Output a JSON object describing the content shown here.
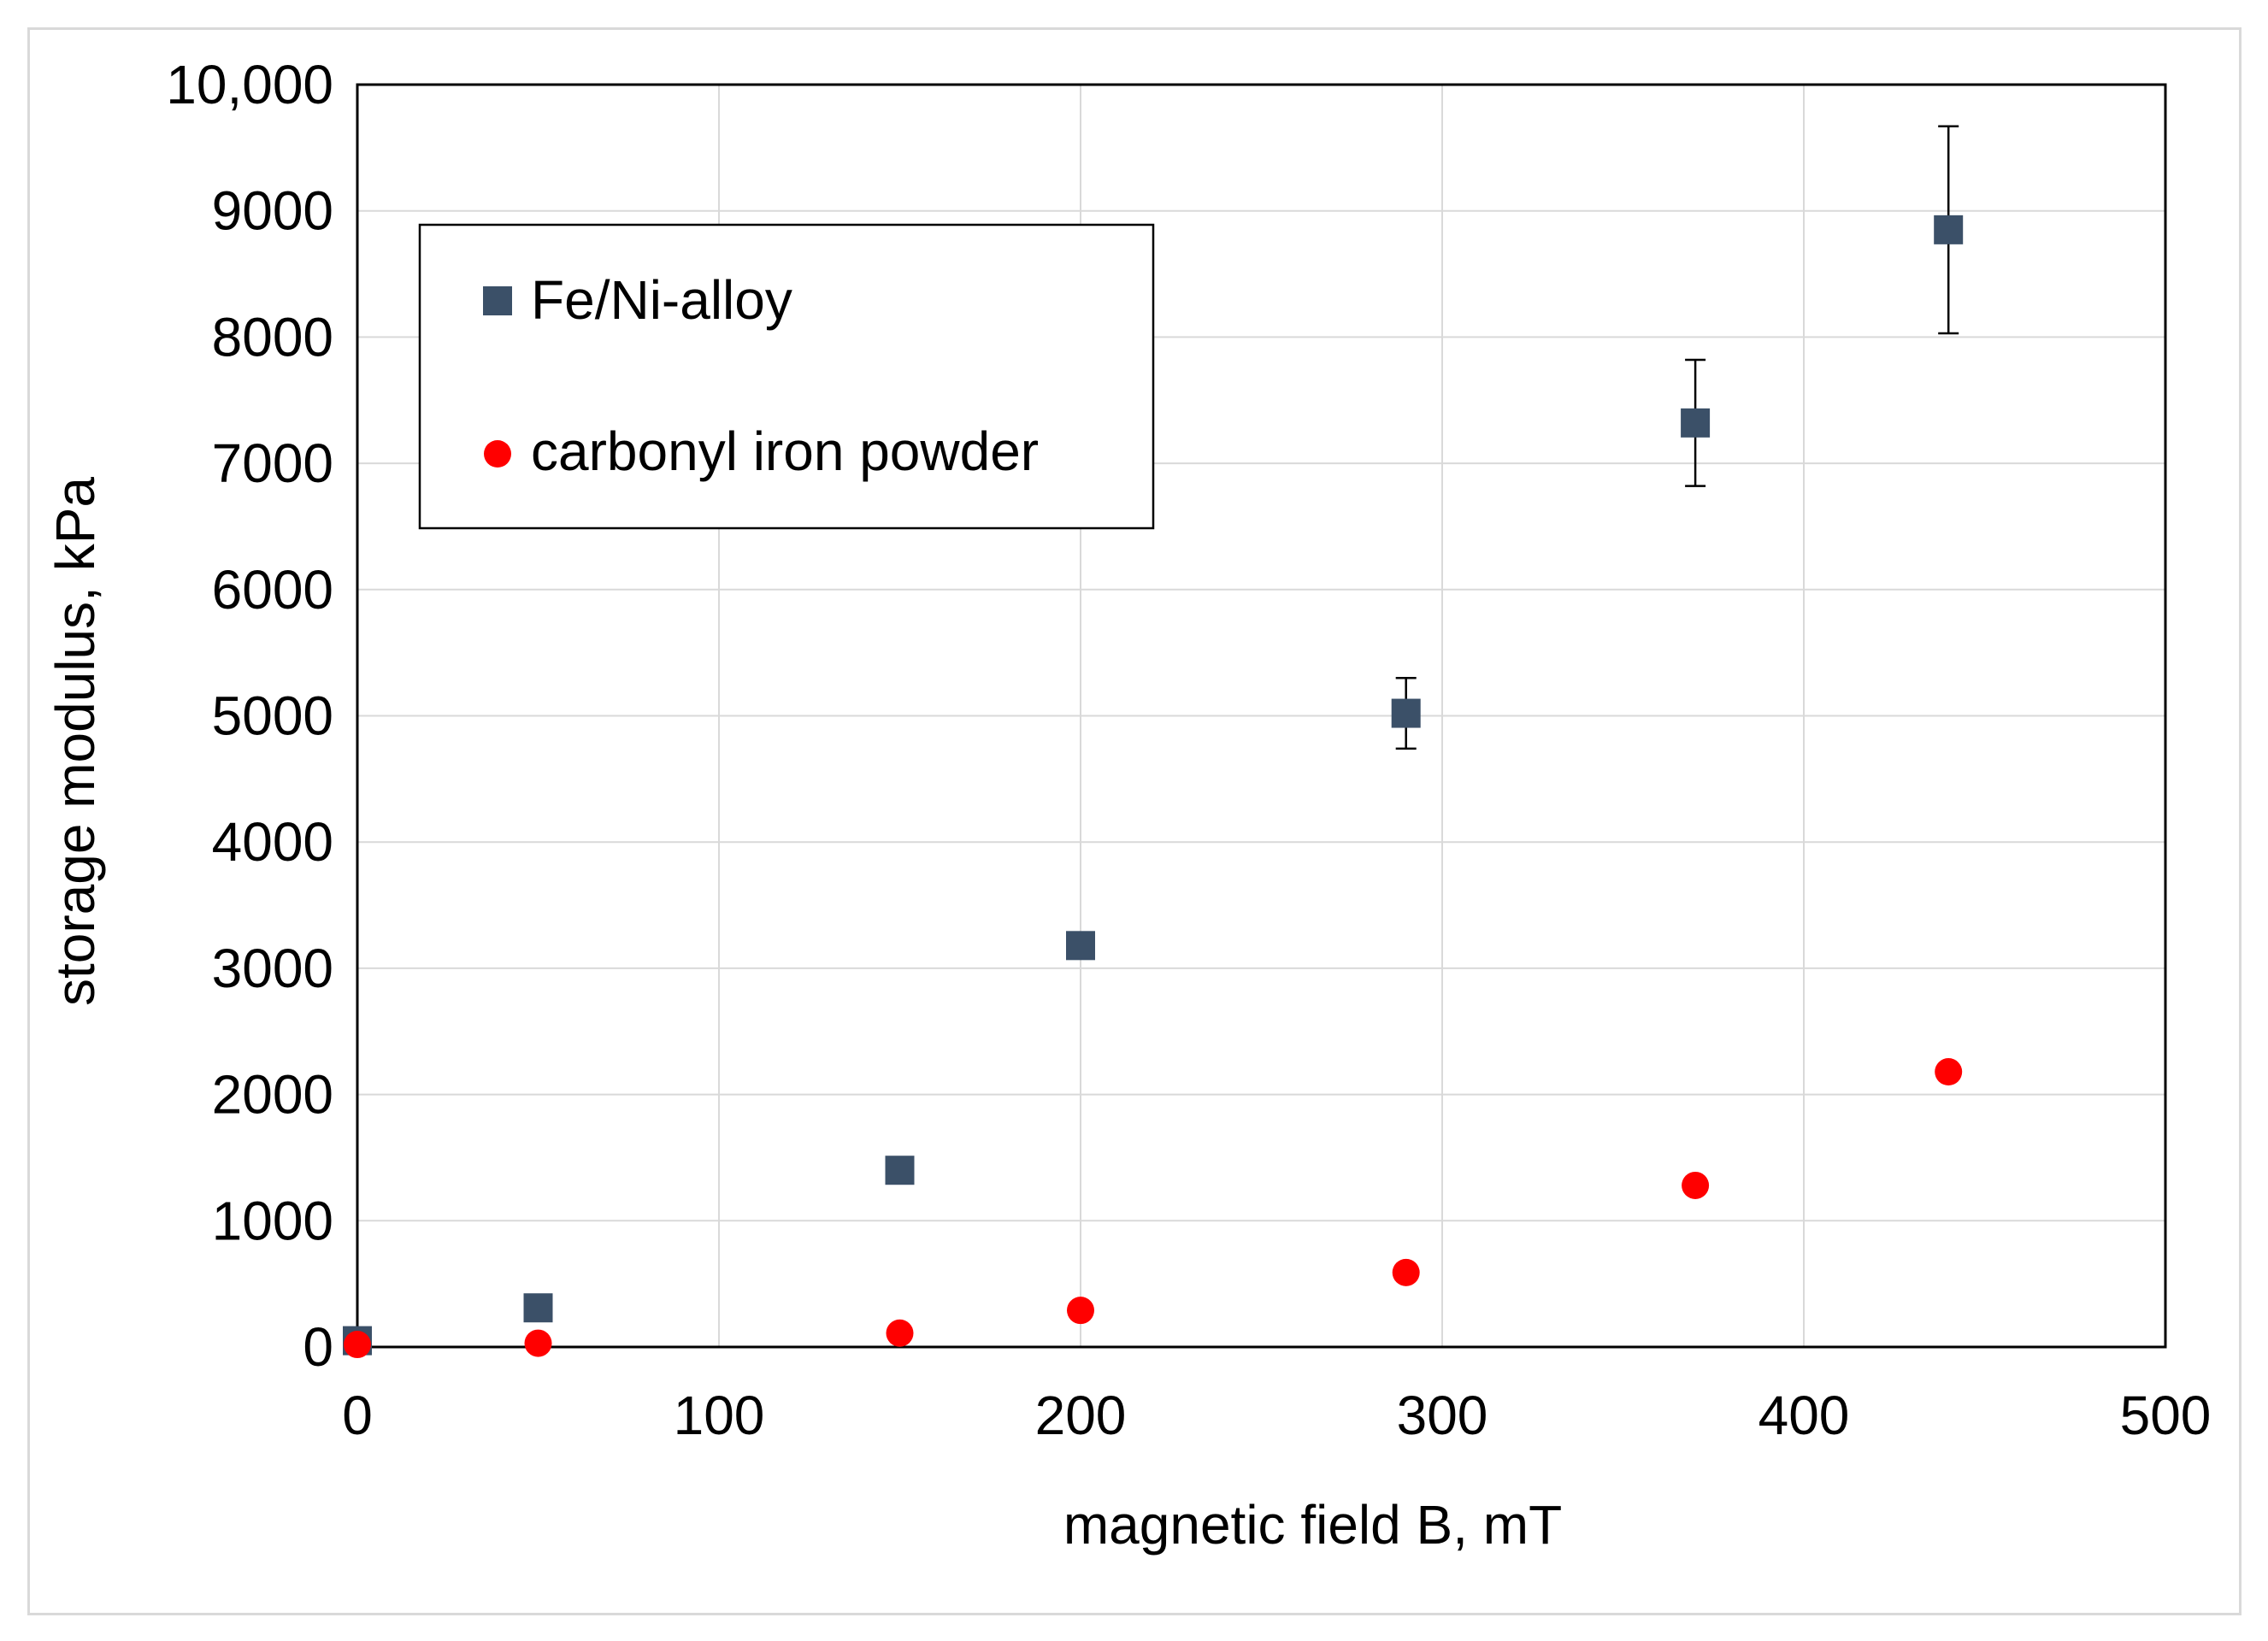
{
  "chart_data": {
    "type": "scatter",
    "title": "",
    "xlabel": "magnetic field B, mT",
    "ylabel": "storage modulus, kPa",
    "xlim": [
      0,
      500
    ],
    "ylim": [
      0,
      10000
    ],
    "xticks": [
      0,
      100,
      200,
      300,
      400,
      500
    ],
    "xtick_labels": [
      "0",
      "100",
      "200",
      "300",
      "400",
      "500"
    ],
    "yticks": [
      0,
      1000,
      2000,
      3000,
      4000,
      5000,
      6000,
      7000,
      8000,
      9000,
      10000
    ],
    "ytick_labels": [
      "0",
      "1000",
      "2000",
      "3000",
      "4000",
      "5000",
      "6000",
      "7000",
      "8000",
      "9000",
      "10,000"
    ],
    "grid": true,
    "legend_position": "top-left",
    "series": [
      {
        "name": "Fe/Ni-alloy",
        "marker": "square",
        "color": "#3b5068",
        "x": [
          0,
          50,
          150,
          200,
          290,
          370,
          440
        ],
        "y": [
          50,
          310,
          1400,
          3180,
          5020,
          7320,
          8850
        ],
        "error": [
          0,
          0,
          0,
          0,
          280,
          500,
          820
        ]
      },
      {
        "name": "carbonyl iron powder",
        "marker": "circle",
        "color": "#ff0000",
        "x": [
          0,
          50,
          150,
          200,
          290,
          370,
          440
        ],
        "y": [
          20,
          30,
          110,
          290,
          590,
          1280,
          2180
        ]
      }
    ]
  }
}
